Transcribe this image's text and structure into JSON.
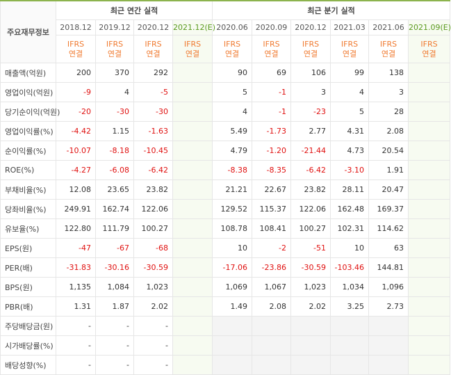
{
  "table": {
    "corner": "주요재무정보",
    "groups": [
      "최근 연간 실적",
      "최근 분기 실적"
    ],
    "periods": [
      "2018.12",
      "2019.12",
      "2020.12",
      "2021.12(E)",
      "2020.06",
      "2020.09",
      "2020.12",
      "2021.03",
      "2021.06",
      "2021.09(E)"
    ],
    "basis": [
      "IFRS 연결",
      "IFRS 연결",
      "IFRS 연결",
      "IFRS 연결",
      "IFRS 연결",
      "IFRS 연결",
      "IFRS 연결",
      "IFRS 연결",
      "IFRS 연결",
      "IFRS 연결"
    ],
    "rows": [
      {
        "label": "매출액(억원)",
        "values": [
          "200",
          "370",
          "292",
          null,
          "90",
          "69",
          "106",
          "99",
          "138",
          null
        ]
      },
      {
        "label": "영업이익(억원)",
        "values": [
          "-9",
          "4",
          "-5",
          null,
          "5",
          "-1",
          "3",
          "4",
          "3",
          null
        ]
      },
      {
        "label": "당기순이익(억원)",
        "values": [
          "-20",
          "-30",
          "-30",
          null,
          "4",
          "-1",
          "-23",
          "5",
          "28",
          null
        ]
      },
      {
        "label": "영업이익률(%)",
        "values": [
          "-4.42",
          "1.15",
          "-1.63",
          null,
          "5.49",
          "-1.73",
          "2.77",
          "4.31",
          "2.08",
          null
        ]
      },
      {
        "label": "순이익률(%)",
        "values": [
          "-10.07",
          "-8.18",
          "-10.45",
          null,
          "4.79",
          "-1.20",
          "-21.44",
          "4.73",
          "20.54",
          null
        ]
      },
      {
        "label": "ROE(%)",
        "values": [
          "-4.27",
          "-6.08",
          "-6.42",
          null,
          "-8.38",
          "-8.35",
          "-6.42",
          "-3.10",
          "1.91",
          null
        ]
      },
      {
        "label": "부채비율(%)",
        "values": [
          "12.08",
          "23.65",
          "23.82",
          null,
          "21.21",
          "22.67",
          "23.82",
          "28.11",
          "20.47",
          null
        ]
      },
      {
        "label": "당좌비율(%)",
        "values": [
          "249.91",
          "162.74",
          "122.06",
          null,
          "129.52",
          "115.37",
          "122.06",
          "162.48",
          "169.37",
          null
        ]
      },
      {
        "label": "유보율(%)",
        "values": [
          "122.80",
          "111.79",
          "100.27",
          null,
          "108.78",
          "108.41",
          "100.27",
          "102.31",
          "114.62",
          null
        ]
      },
      {
        "label": "EPS(원)",
        "values": [
          "-47",
          "-67",
          "-68",
          null,
          "10",
          "-2",
          "-51",
          "10",
          "63",
          null
        ]
      },
      {
        "label": "PER(배)",
        "values": [
          "-31.83",
          "-30.16",
          "-30.59",
          null,
          "-17.06",
          "-23.86",
          "-30.59",
          "-103.46",
          "144.81",
          null
        ]
      },
      {
        "label": "BPS(원)",
        "values": [
          "1,135",
          "1,084",
          "1,023",
          null,
          "1,069",
          "1,067",
          "1,023",
          "1,034",
          "1,096",
          null
        ]
      },
      {
        "label": "PBR(배)",
        "values": [
          "1.31",
          "1.87",
          "2.02",
          null,
          "1.49",
          "2.08",
          "2.02",
          "3.25",
          "2.73",
          null
        ]
      },
      {
        "label": "주당배당금(원)",
        "values": [
          "-",
          "-",
          "-",
          null,
          null,
          null,
          null,
          null,
          null,
          null
        ]
      },
      {
        "label": "시가배당률(%)",
        "values": [
          "-",
          "-",
          "-",
          null,
          null,
          null,
          null,
          null,
          null,
          null
        ]
      },
      {
        "label": "배당성향(%)",
        "values": [
          "-",
          "-",
          "-",
          null,
          null,
          null,
          null,
          null,
          null,
          null
        ]
      }
    ]
  }
}
